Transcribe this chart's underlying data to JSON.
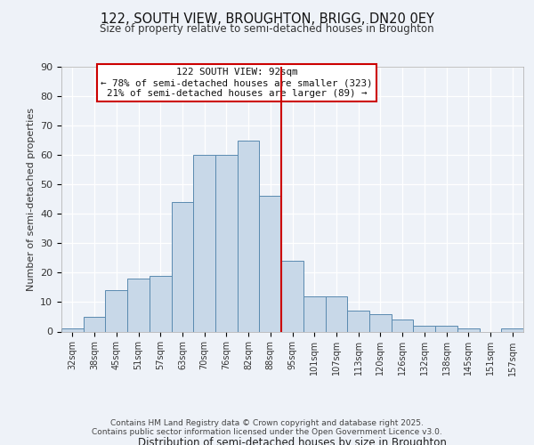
{
  "title1": "122, SOUTH VIEW, BROUGHTON, BRIGG, DN20 0EY",
  "title2": "Size of property relative to semi-detached houses in Broughton",
  "xlabel": "Distribution of semi-detached houses by size in Broughton",
  "ylabel": "Number of semi-detached properties",
  "bar_labels": [
    "32sqm",
    "38sqm",
    "45sqm",
    "51sqm",
    "57sqm",
    "63sqm",
    "70sqm",
    "76sqm",
    "82sqm",
    "88sqm",
    "95sqm",
    "101sqm",
    "107sqm",
    "113sqm",
    "120sqm",
    "126sqm",
    "132sqm",
    "138sqm",
    "145sqm",
    "151sqm",
    "157sqm"
  ],
  "bar_heights": [
    1,
    5,
    14,
    18,
    19,
    44,
    60,
    60,
    65,
    46,
    24,
    12,
    12,
    7,
    6,
    4,
    2,
    2,
    1,
    0,
    1
  ],
  "bar_color": "#c8d8e8",
  "bar_edge_color": "#5a8ab0",
  "vline_x": 9.5,
  "vline_color": "#cc0000",
  "annotation_title": "122 SOUTH VIEW: 92sqm",
  "annotation_line1": "← 78% of semi-detached houses are smaller (323)",
  "annotation_line2": "21% of semi-detached houses are larger (89) →",
  "annotation_box_color": "#cc0000",
  "ylim": [
    0,
    90
  ],
  "yticks": [
    0,
    10,
    20,
    30,
    40,
    50,
    60,
    70,
    80,
    90
  ],
  "footer1": "Contains HM Land Registry data © Crown copyright and database right 2025.",
  "footer2": "Contains public sector information licensed under the Open Government Licence v3.0.",
  "bg_color": "#eef2f8",
  "grid_color": "#ffffff"
}
